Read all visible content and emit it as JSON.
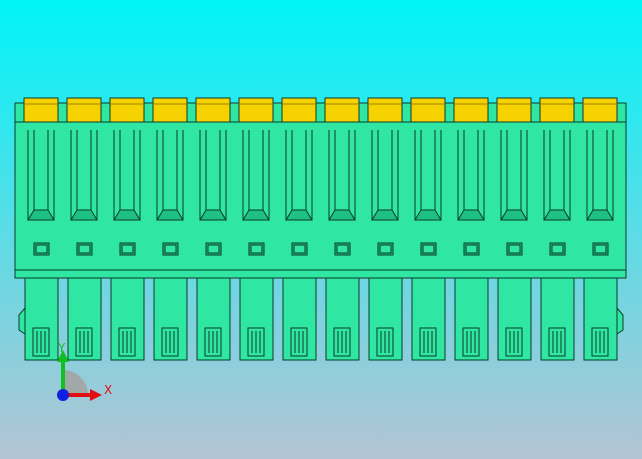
{
  "axes": {
    "x": "X",
    "y": "Y"
  }
}
